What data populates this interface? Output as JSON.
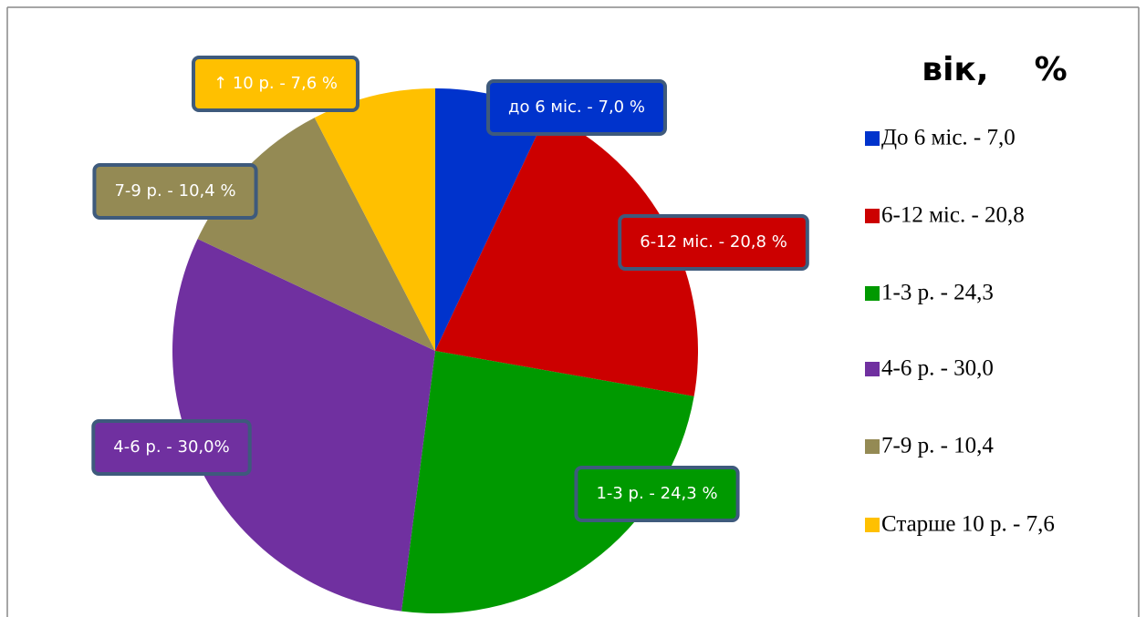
{
  "chart_data": {
    "type": "pie",
    "title": "вік,    %",
    "categories": [
      "До 6 міс. - 7,0",
      "6-12 міс. - 20,8",
      "1-3 р. - 24,3",
      "4-6 р. - 30,0",
      "7-9 р. - 10,4",
      "Старше 10 р. - 7,6"
    ],
    "values": [
      7.0,
      20.8,
      24.3,
      30.0,
      10.4,
      7.6
    ],
    "value_labels": [
      "до 6 міс. - 7,0 %",
      "6-12 міс. - 20,8 %",
      "1-3 р. - 24,3 %",
      "4-6 р. - 30,0%",
      "7-9 р. - 10,4 %",
      "↑ 10 р. - 7,6 %"
    ],
    "colors": [
      "#0033cc",
      "#cc0000",
      "#009900",
      "#7030a0",
      "#948a54",
      "#ffc000"
    ],
    "legend": "right"
  }
}
